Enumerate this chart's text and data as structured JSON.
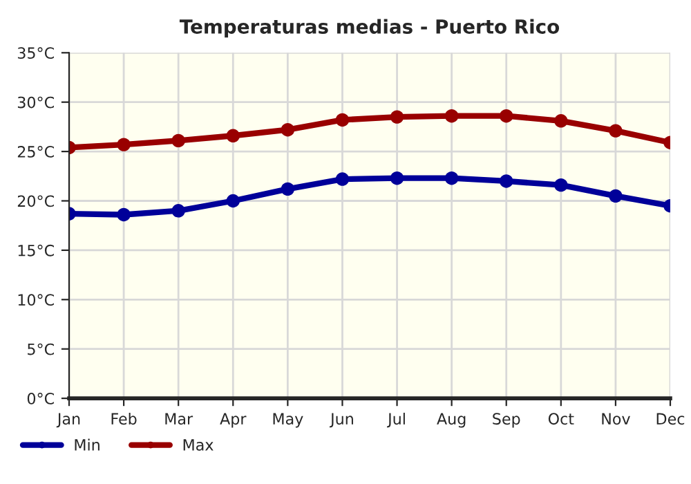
{
  "chart_data": {
    "type": "line",
    "title": "Temperaturas medias - Puerto Rico",
    "categories": [
      "Jan",
      "Feb",
      "Mar",
      "Apr",
      "May",
      "Jun",
      "Jul",
      "Aug",
      "Sep",
      "Oct",
      "Nov",
      "Dec"
    ],
    "series": [
      {
        "name": "Min",
        "color": "#000099",
        "values": [
          18.7,
          18.6,
          19.0,
          20.0,
          21.2,
          22.2,
          22.3,
          22.3,
          22.0,
          21.6,
          20.5,
          19.5
        ]
      },
      {
        "name": "Max",
        "color": "#990000",
        "values": [
          25.4,
          25.7,
          26.1,
          26.6,
          27.2,
          28.2,
          28.5,
          28.6,
          28.6,
          28.1,
          27.1,
          25.9
        ]
      }
    ],
    "ylim": [
      0,
      35
    ],
    "yticks": [
      {
        "value": 0,
        "label": "0°C"
      },
      {
        "value": 5,
        "label": "5°C"
      },
      {
        "value": 10,
        "label": "10°C"
      },
      {
        "value": 15,
        "label": "15°C"
      },
      {
        "value": 20,
        "label": "20°C"
      },
      {
        "value": 25,
        "label": "25°C"
      },
      {
        "value": 30,
        "label": "30°C"
      },
      {
        "value": 35,
        "label": "35°C"
      }
    ],
    "grid": true,
    "legend": "bottom left",
    "marker": "circle",
    "line_style": "solid"
  }
}
